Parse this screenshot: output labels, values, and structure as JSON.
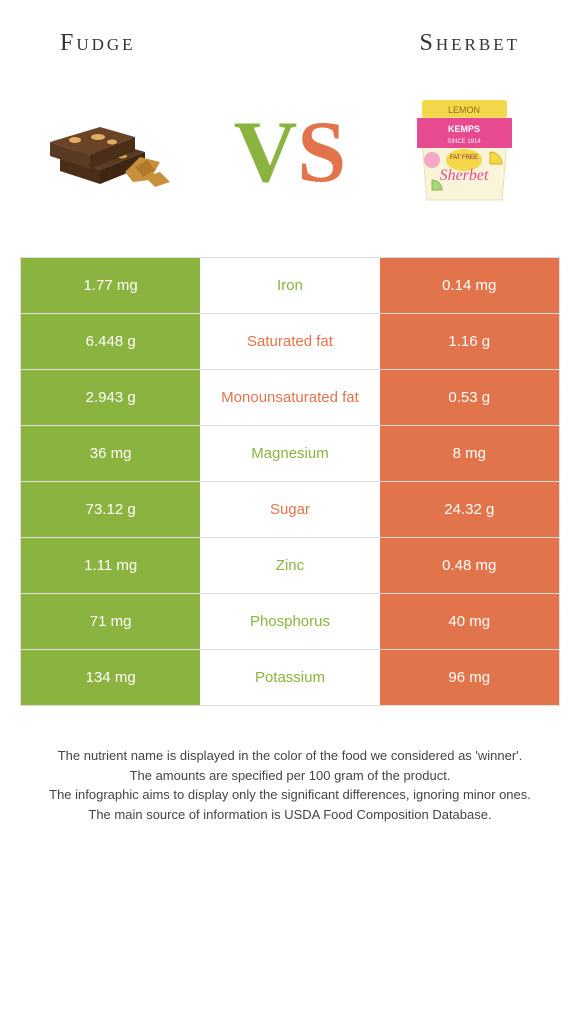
{
  "header": {
    "left_title": "Fudge",
    "right_title": "Sherbet"
  },
  "vs": {
    "v": "V",
    "s": "S"
  },
  "colors": {
    "left": "#8bb33f",
    "right": "#e2744c",
    "border": "#dddddd",
    "bg": "#ffffff"
  },
  "rows": [
    {
      "left": "1.77 mg",
      "label": "Iron",
      "right": "0.14 mg",
      "winner": "left"
    },
    {
      "left": "6.448 g",
      "label": "Saturated fat",
      "right": "1.16 g",
      "winner": "right"
    },
    {
      "left": "2.943 g",
      "label": "Monounsaturated fat",
      "right": "0.53 g",
      "winner": "right"
    },
    {
      "left": "36 mg",
      "label": "Magnesium",
      "right": "8 mg",
      "winner": "left"
    },
    {
      "left": "73.12 g",
      "label": "Sugar",
      "right": "24.32 g",
      "winner": "right"
    },
    {
      "left": "1.11 mg",
      "label": "Zinc",
      "right": "0.48 mg",
      "winner": "left"
    },
    {
      "left": "71 mg",
      "label": "Phosphorus",
      "right": "40 mg",
      "winner": "left"
    },
    {
      "left": "134 mg",
      "label": "Potassium",
      "right": "96 mg",
      "winner": "left"
    }
  ],
  "footer": {
    "l1": "The nutrient name is displayed in the color of the food we considered as 'winner'.",
    "l2": "The amounts are specified per 100 gram of the product.",
    "l3": "The infographic aims to display only the significant differences, ignoring minor ones.",
    "l4": "The main source of information is USDA Food Composition Database."
  },
  "icons": {
    "fudge": "fudge-icon",
    "sherbet": "sherbet-icon"
  }
}
